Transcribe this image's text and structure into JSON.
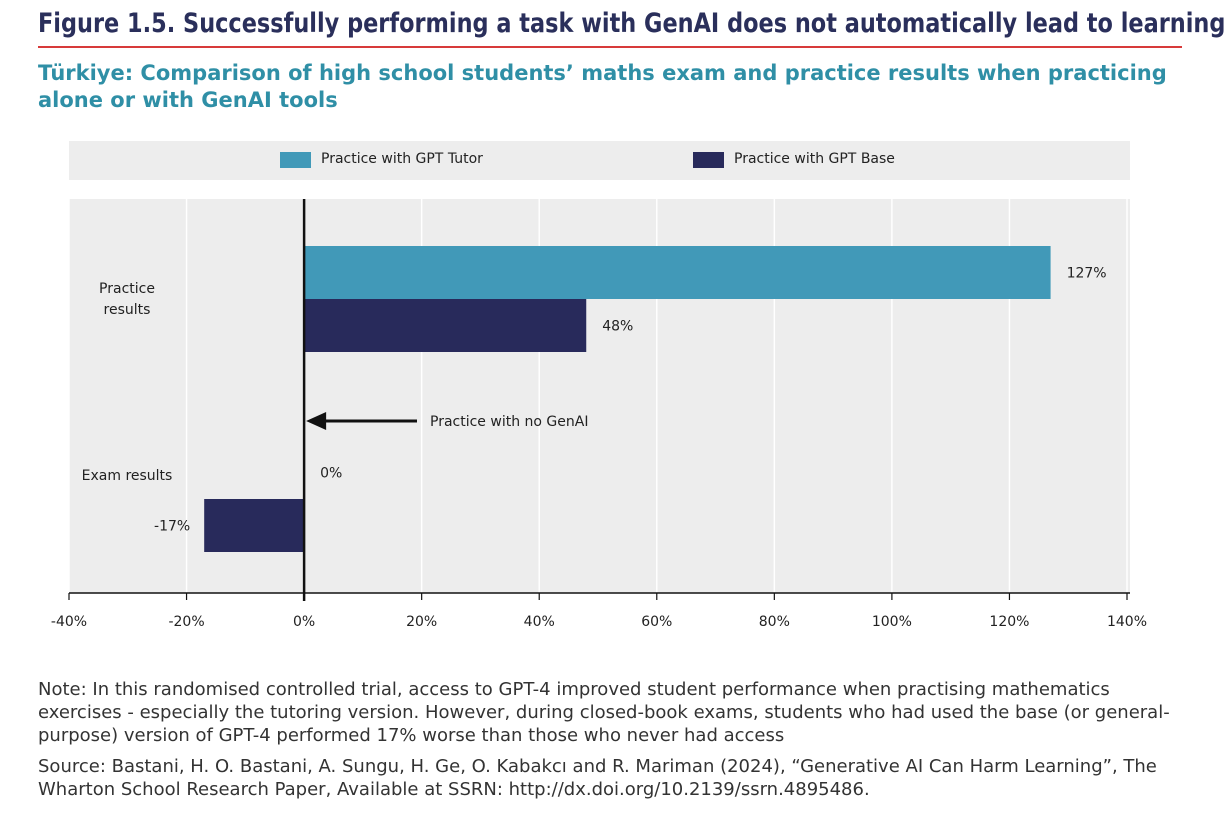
{
  "figure_title": "Figure 1.5. Successfully performing a task with GenAI does not automatically lead to learning",
  "subtitle": "Türkiye: Comparison of high school students’ maths exam and practice results when practicing alone or with GenAI tools",
  "chart_data": {
    "type": "bar",
    "orientation": "horizontal",
    "categories": [
      "Practice results",
      "Exam results"
    ],
    "series": [
      {
        "name": "Practice with GPT Tutor",
        "color": "#4199b8",
        "values": [
          127,
          null
        ]
      },
      {
        "name": "Practice with GPT Base",
        "color": "#282a5b",
        "values": [
          48,
          -17
        ]
      }
    ],
    "data_labels": [
      {
        "series": 0,
        "category": 0,
        "text": "127%"
      },
      {
        "series": 1,
        "category": 0,
        "text": "48%"
      },
      {
        "series": 0,
        "category": 1,
        "text": "0%"
      },
      {
        "series": 1,
        "category": 1,
        "text": "-17%"
      }
    ],
    "annotation": {
      "text": "Practice with no GenAI",
      "points_to": 0
    },
    "xlim": [
      -40,
      140
    ],
    "xticks": [
      -40,
      -20,
      0,
      20,
      40,
      60,
      80,
      100,
      120,
      140
    ],
    "xtick_labels": [
      "-40%",
      "-20%",
      "0%",
      "20%",
      "40%",
      "60%",
      "80%",
      "100%",
      "120%",
      "140%"
    ],
    "grid": true,
    "legend_position": "top"
  },
  "note": "Note: In this randomised controlled trial, access to GPT-4 improved student performance when practising mathematics exercises - especially the tutoring version. However, during closed-book exams, students who had used the base (or general-purpose) version of GPT-4 performed 17% worse than those who never had access",
  "source": "Source: Bastani, H. O. Bastani, A. Sungu, H. Ge, O. Kabakcı and R. Mariman (2024), “Generative AI Can Harm Learning”, The Wharton School Research Paper, Available at SSRN: http://dx.doi.org/10.2139/ssrn.4895486."
}
